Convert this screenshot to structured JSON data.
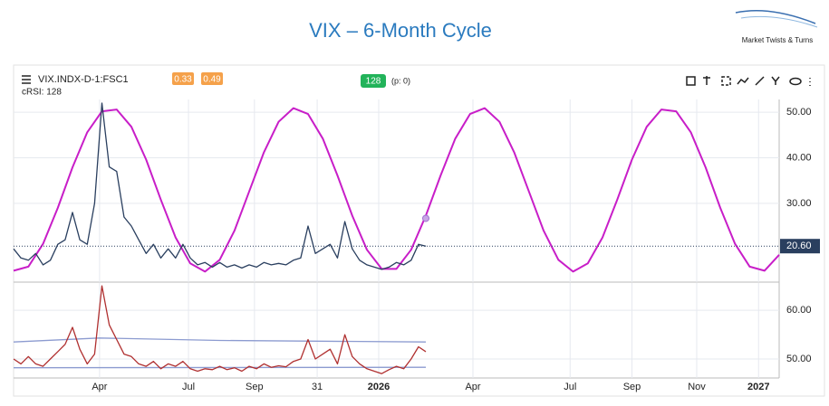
{
  "logo": "Market Twists & Turns",
  "header": {
    "symbol": "VIX.INDX-D-1:FSC1",
    "badge1": "0.33",
    "badge2": "0.49",
    "badge3": "128",
    "p_label": "(p: 0)",
    "indicator": "cRSI: 128"
  },
  "chart_data": [
    {
      "type": "line",
      "title": "VIX – 6-Month Cycle",
      "xlim": [
        0,
        26
      ],
      "ylim": [
        12.7,
        52.8
      ],
      "xticks": [
        {
          "value": 2.92,
          "label": "Apr"
        },
        {
          "value": 5.94,
          "label": "Jul"
        },
        {
          "value": 8.18,
          "label": "Sep"
        },
        {
          "value": 10.31,
          "label": "31"
        },
        {
          "value": 12.4,
          "label": "2026"
        },
        {
          "value": 15.6,
          "label": "Apr"
        },
        {
          "value": 18.9,
          "label": "Jul"
        },
        {
          "value": 21.0,
          "label": "Sep"
        },
        {
          "value": 23.2,
          "label": "Nov"
        },
        {
          "value": 25.3,
          "label": "2027"
        }
      ],
      "yticks": [
        {
          "value": 50,
          "label": "50.00"
        },
        {
          "value": 40,
          "label": "40.00"
        },
        {
          "value": 30,
          "label": "30.00"
        }
      ],
      "grid": true,
      "current_value": {
        "value": 20.6,
        "label": "20.60"
      },
      "cycle_marker": {
        "x": 14,
        "y": 26.7,
        "color": "#c9a6e6"
      },
      "series": [
        {
          "color": "#c81ec8",
          "x": [
            0,
            0.5,
            1,
            1.5,
            2,
            2.5,
            3,
            3.5,
            4,
            4.5,
            5,
            5.5,
            6,
            6.5,
            7,
            7.5,
            8,
            8.5,
            9,
            9.5,
            10,
            10.5,
            11,
            11.5,
            12,
            12.5,
            13,
            13.5,
            14,
            14.5,
            15,
            15.5,
            16,
            16.5,
            17,
            17.5,
            18,
            18.5,
            19,
            19.5,
            20,
            20.5,
            21,
            21.5,
            22,
            22.5,
            23,
            23.5,
            24,
            24.5,
            25,
            25.5,
            26
          ],
          "values": [
            15.2,
            16.1,
            21.1,
            29.0,
            37.9,
            45.6,
            50.2,
            50.6,
            46.8,
            39.6,
            30.8,
            22.5,
            16.8,
            15.0,
            17.6,
            24.0,
            32.6,
            41.2,
            47.9,
            50.9,
            49.6,
            44.2,
            36.1,
            27.3,
            19.8,
            15.6,
            15.6,
            19.8,
            27.3,
            36.1,
            44.2,
            49.6,
            50.9,
            47.9,
            41.2,
            32.6,
            24.0,
            17.6,
            15.0,
            16.8,
            22.5,
            30.8,
            39.6,
            46.8,
            50.6,
            50.2,
            45.6,
            37.9,
            29.0,
            21.1,
            16.1,
            15.2,
            18.7
          ]
        },
        {
          "color": "#2a3f5f",
          "x": [
            0,
            0.25,
            0.5,
            0.75,
            1,
            1.25,
            1.5,
            1.75,
            2,
            2.25,
            2.5,
            2.75,
            3,
            3.25,
            3.5,
            3.75,
            4,
            4.25,
            4.5,
            4.75,
            5,
            5.25,
            5.5,
            5.75,
            6,
            6.25,
            6.5,
            6.75,
            7,
            7.25,
            7.5,
            7.75,
            8,
            8.25,
            8.5,
            8.75,
            9,
            9.25,
            9.5,
            9.75,
            10,
            10.25,
            10.5,
            10.75,
            11,
            11.25,
            11.5,
            11.75,
            12,
            12.25,
            12.5,
            12.75,
            13,
            13.25,
            13.5,
            13.75,
            14
          ],
          "values": [
            20,
            18,
            17.5,
            19,
            16.5,
            17.5,
            21,
            22,
            28,
            22,
            21,
            30,
            52,
            38,
            37,
            27,
            25,
            22,
            19,
            21,
            18,
            20,
            18,
            21,
            18,
            16.5,
            17,
            16,
            17,
            16,
            16.5,
            15.8,
            16.5,
            16,
            17,
            16.5,
            16.8,
            16.5,
            17.5,
            18,
            25,
            19,
            20,
            21,
            18,
            26,
            20,
            17.5,
            16.5,
            16,
            15.5,
            16,
            17,
            16.5,
            17.5,
            21,
            20.6
          ]
        }
      ]
    },
    {
      "type": "line",
      "xlim": [
        0,
        26
      ],
      "ylim": [
        46.1,
        65.6
      ],
      "yticks": [
        {
          "value": 60,
          "label": "60.00"
        },
        {
          "value": 50,
          "label": "50.00"
        }
      ],
      "series": [
        {
          "color": "#8c9bd0",
          "x": [
            0,
            2.9,
            7,
            14
          ],
          "values": [
            53.5,
            54.3,
            53.8,
            53.5
          ]
        },
        {
          "color": "#8c9bd0",
          "x": [
            0,
            14
          ],
          "values": [
            48.2,
            48.3
          ]
        },
        {
          "color": "#b03030",
          "x": [
            0,
            0.25,
            0.5,
            0.75,
            1,
            1.25,
            1.5,
            1.75,
            2,
            2.25,
            2.5,
            2.75,
            3,
            3.25,
            3.5,
            3.75,
            4,
            4.25,
            4.5,
            4.75,
            5,
            5.25,
            5.5,
            5.75,
            6,
            6.25,
            6.5,
            6.75,
            7,
            7.25,
            7.5,
            7.75,
            8,
            8.25,
            8.5,
            8.75,
            9,
            9.25,
            9.5,
            9.75,
            10,
            10.25,
            10.5,
            10.75,
            11,
            11.25,
            11.5,
            11.75,
            12,
            12.25,
            12.5,
            12.75,
            13,
            13.25,
            13.5,
            13.75,
            14
          ],
          "values": [
            50,
            49,
            50.5,
            49,
            48.5,
            50,
            51.5,
            53,
            56.5,
            52,
            49,
            51,
            65,
            57,
            54,
            51,
            50.5,
            49,
            48.5,
            49.5,
            48,
            49,
            48.5,
            49.5,
            48,
            47.5,
            48,
            47.8,
            48.5,
            47.8,
            48.2,
            47.5,
            48.5,
            48,
            49,
            48.3,
            48.6,
            48.4,
            49.5,
            50,
            54,
            50,
            51,
            52,
            49,
            55,
            50.5,
            49,
            48,
            47.5,
            47,
            47.8,
            48.5,
            48,
            50,
            52.5,
            51.5
          ]
        }
      ]
    }
  ]
}
